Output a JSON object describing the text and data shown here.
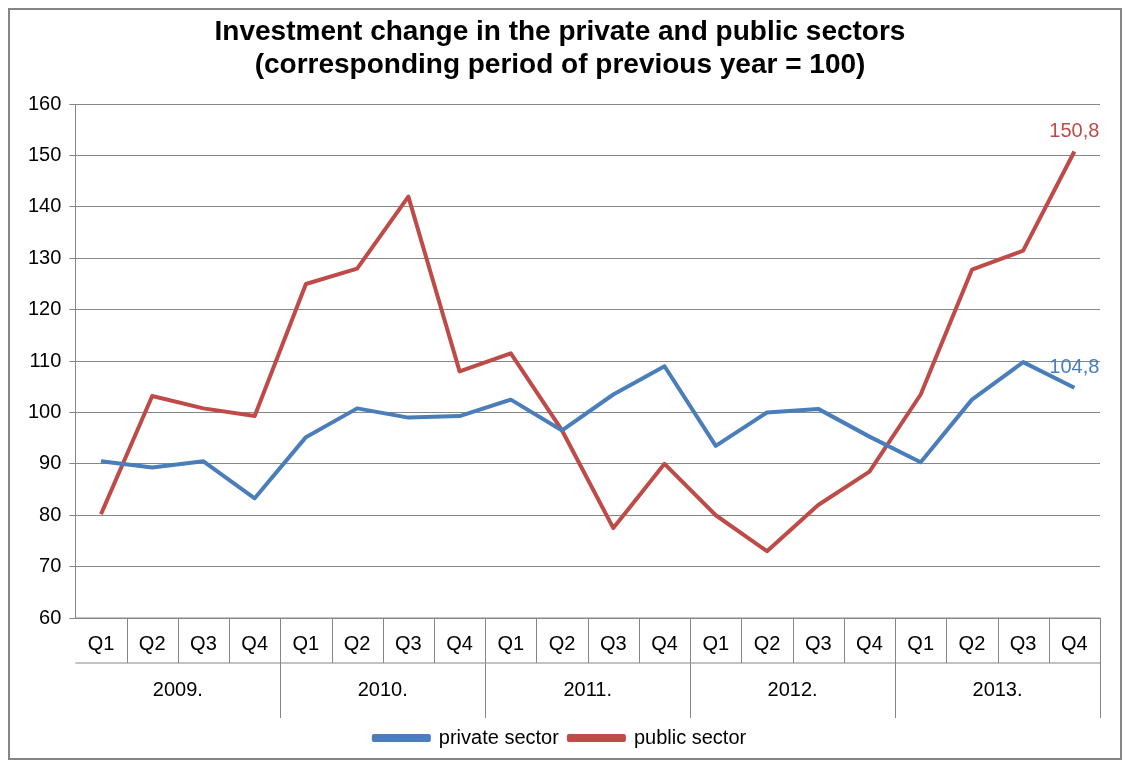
{
  "chart_data": {
    "type": "line",
    "title": "Investment change in the private and public sectors\n(corresponding period of previous year = 100)",
    "categories": [
      "Q1",
      "Q2",
      "Q3",
      "Q4",
      "Q1",
      "Q2",
      "Q3",
      "Q4",
      "Q1",
      "Q2",
      "Q3",
      "Q4",
      "Q1",
      "Q2",
      "Q3",
      "Q4",
      "Q1",
      "Q2",
      "Q3",
      "Q4"
    ],
    "annotations": [
      "2009.",
      "2010.",
      "2011.",
      "2012.",
      "2013."
    ],
    "series": [
      {
        "name": "private sector",
        "color": "#4a7ebb",
        "values": [
          90.5,
          89.3,
          90.5,
          83.3,
          95.2,
          100.8,
          99,
          99.3,
          102.5,
          96.5,
          103.5,
          109,
          93.5,
          100,
          100.7,
          95.3,
          90.3,
          102.5,
          109.8,
          104.8
        ],
        "value_labels": [
          null,
          null,
          null,
          null,
          null,
          null,
          null,
          null,
          null,
          null,
          null,
          null,
          null,
          null,
          null,
          null,
          null,
          null,
          null,
          "104,8"
        ]
      },
      {
        "name": "public sector",
        "color": "#be4b48",
        "values": [
          80.2,
          103.2,
          100.8,
          99.3,
          125,
          128,
          142,
          108,
          111.5,
          96.5,
          77.5,
          90,
          80,
          73,
          82,
          88.5,
          103.5,
          127.8,
          131.5,
          150.8
        ],
        "value_labels": [
          null,
          null,
          null,
          null,
          null,
          null,
          null,
          null,
          null,
          null,
          null,
          null,
          null,
          null,
          null,
          null,
          null,
          null,
          null,
          "150,8"
        ]
      }
    ],
    "ylim": [
      60,
      160
    ],
    "yticks": [
      60,
      70,
      80,
      90,
      100,
      110,
      120,
      130,
      140,
      150,
      160
    ],
    "grid": "y",
    "legend": "bottom",
    "marker": "none",
    "line_style": "solid"
  }
}
